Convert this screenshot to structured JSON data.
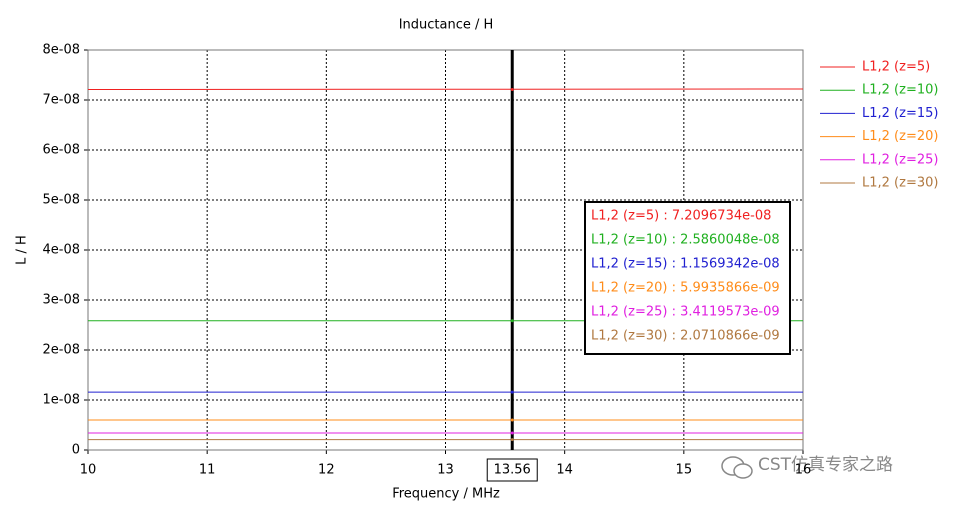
{
  "chart_data": {
    "type": "line",
    "title": "Inductance / H",
    "x_label": "Frequency / MHz",
    "y_label": "L / H",
    "x": [
      10,
      16
    ],
    "series": [
      {
        "name": "L1,2 (z=5)",
        "color": "#f02020",
        "values": [
          7.21e-08,
          7.22e-08
        ]
      },
      {
        "name": "L1,2 (z=10)",
        "color": "#20b020",
        "values": [
          2.586e-08,
          2.586e-08
        ]
      },
      {
        "name": "L1,2 (z=15)",
        "color": "#2020d0",
        "values": [
          1.157e-08,
          1.157e-08
        ]
      },
      {
        "name": "L1,2 (z=20)",
        "color": "#ff8c1a",
        "values": [
          5.99e-09,
          5.99e-09
        ]
      },
      {
        "name": "L1,2 (z=25)",
        "color": "#e020e0",
        "values": [
          3.41e-09,
          3.41e-09
        ]
      },
      {
        "name": "L1,2 (z=30)",
        "color": "#b07840",
        "values": [
          2.07e-09,
          2.07e-09
        ]
      }
    ],
    "xlim": [
      10,
      16
    ],
    "ylim": [
      0,
      8e-08
    ],
    "xticks": [
      10,
      11,
      12,
      13,
      14,
      15,
      16
    ],
    "yticks": [
      0,
      {
        "value": 1e-08,
        "label": "1e-08"
      },
      {
        "value": 2e-08,
        "label": "2e-08"
      },
      {
        "value": 3e-08,
        "label": "3e-08"
      },
      {
        "value": 4e-08,
        "label": "4e-08"
      },
      {
        "value": 5e-08,
        "label": "5e-08"
      },
      {
        "value": 6e-08,
        "label": "6e-08"
      },
      {
        "value": 7e-08,
        "label": "7e-08"
      },
      {
        "value": 8e-08,
        "label": "8e-08"
      }
    ],
    "grid": true,
    "legend": "right",
    "cursor": {
      "x": 13.56,
      "readouts": [
        {
          "label": "L1,2 (z=5) : 7.2096734e-08",
          "value": 7.2096734e-08
        },
        {
          "label": "L1,2 (z=10) : 2.5860048e-08",
          "value": 2.5860048e-08
        },
        {
          "label": "L1,2 (z=15) : 1.1569342e-08",
          "value": 1.1569342e-08
        },
        {
          "label": "L1,2 (z=20) : 5.9935866e-09",
          "value": 5.9935866e-09
        },
        {
          "label": "L1,2 (z=25) : 3.4119573e-09",
          "value": 3.4119573e-09
        },
        {
          "label": "L1,2 (z=30) : 2.0710866e-09",
          "value": 2.0710866e-09
        }
      ]
    },
    "watermark": "CST仿真专家之路"
  }
}
